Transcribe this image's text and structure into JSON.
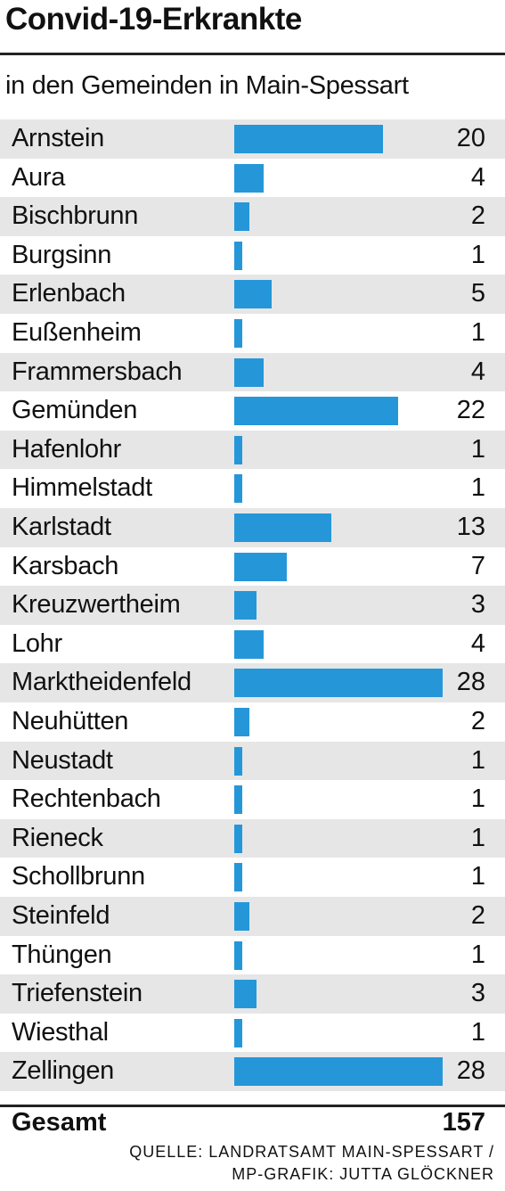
{
  "title": "Convid-19-Erkrankte",
  "subtitle": "in den Gemeinden in Main-Spessart",
  "colors": {
    "bar": "#2597d9",
    "row_shade": "#e6e6e6"
  },
  "chart_data": {
    "type": "bar",
    "orientation": "horizontal",
    "title": "Convid-19-Erkrankte",
    "subtitle": "in den Gemeinden in Main-Spessart",
    "categories": [
      "Arnstein",
      "Aura",
      "Bischbrunn",
      "Burgsinn",
      "Erlenbach",
      "Eußenheim",
      "Frammersbach",
      "Gemünden",
      "Hafenlohr",
      "Himmelstadt",
      "Karlstadt",
      "Karsbach",
      "Kreuzwertheim",
      "Lohr",
      "Marktheidenfeld",
      "Neuhütten",
      "Neustadt",
      "Rechtenbach",
      "Rieneck",
      "Schollbrunn",
      "Steinfeld",
      "Thüngen",
      "Triefenstein",
      "Wiesthal",
      "Zellingen"
    ],
    "values": [
      20,
      4,
      2,
      1,
      5,
      1,
      4,
      22,
      1,
      1,
      13,
      7,
      3,
      4,
      28,
      2,
      1,
      1,
      1,
      1,
      2,
      1,
      3,
      1,
      28
    ],
    "xlim": [
      0,
      28
    ],
    "grid": false,
    "legend": "none"
  },
  "total": {
    "label": "Gesamt",
    "value": "157"
  },
  "source": {
    "line1": "QUELLE: LANDRATSAMT MAIN-SPESSART /",
    "line2": "MP-GRAFIK: JUTTA GLÖCKNER"
  }
}
